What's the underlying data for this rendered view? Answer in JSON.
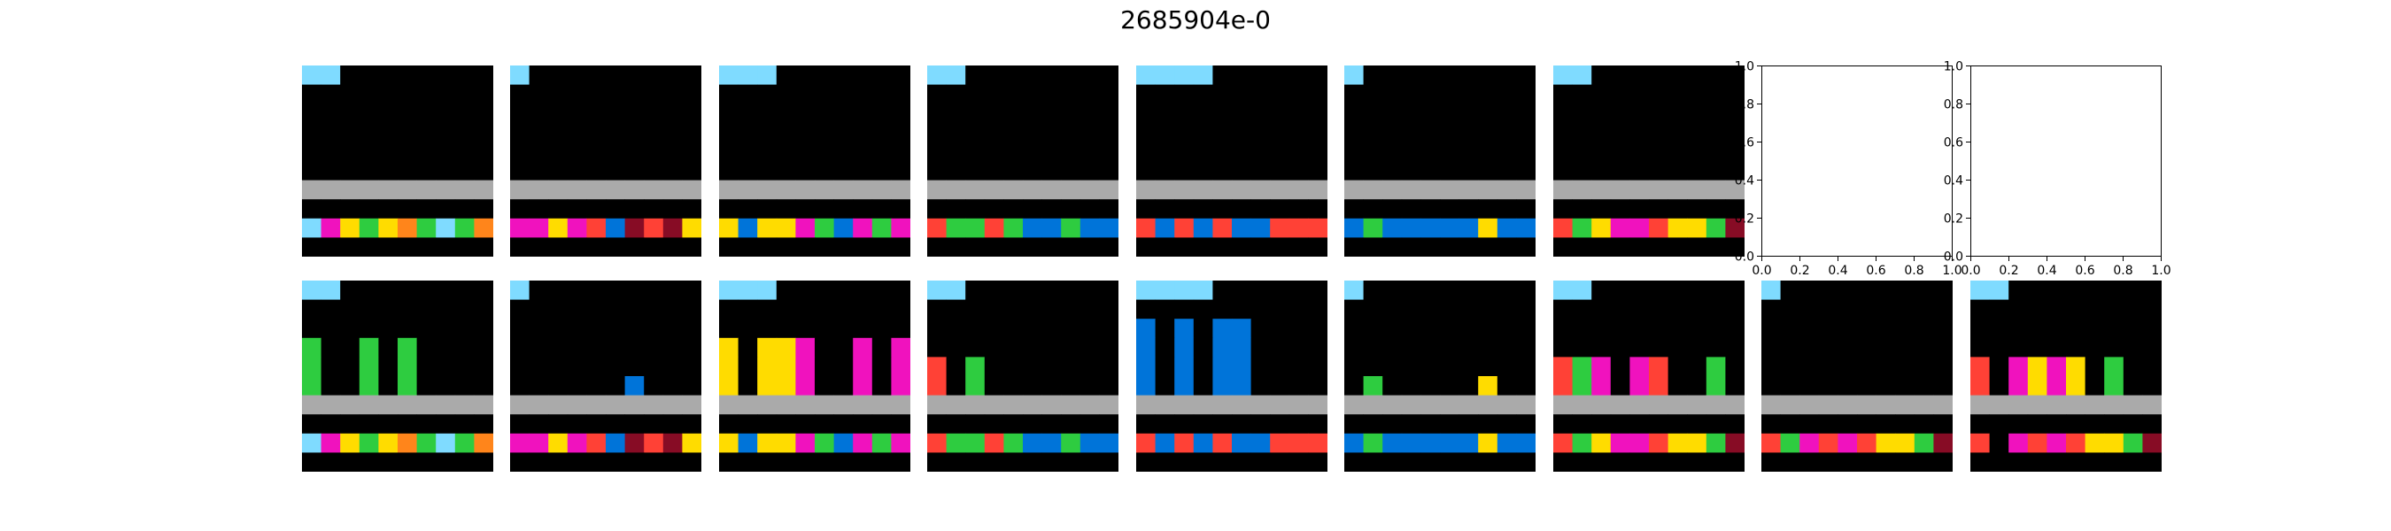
{
  "figure": {
    "title": "2685904e-0",
    "colors": {
      "0": "#000000",
      "1": "#0074D9",
      "2": "#FF4136",
      "3": "#2ECC40",
      "4": "#FFDC00",
      "5": "#AAAAAA",
      "6": "#F012BE",
      "7": "#FF851B",
      "8": "#7FDBFF",
      "9": "#870C25"
    },
    "pairs": [
      {
        "input": [
          "8800000000",
          "0000000000",
          "0000000000",
          "0000000000",
          "0000000000",
          "0000000000",
          "5555555555",
          "0000000000",
          "8643473837",
          "0000000000"
        ],
        "output": [
          "8800000000",
          "0000000000",
          "0000000000",
          "3003030000",
          "3003030000",
          "3003030000",
          "5555555555",
          "0000000000",
          "8643473837",
          "0000000000"
        ]
      },
      {
        "input": [
          "8000000000",
          "0000000000",
          "0000000000",
          "0000000000",
          "0000000000",
          "0000000000",
          "5555555555",
          "0000000000",
          "6646219294",
          "0000000000"
        ],
        "output": [
          "8000000000",
          "0000000000",
          "0000000000",
          "0000000000",
          "0000000000",
          "0000001000",
          "5555555555",
          "0000000000",
          "6646219294",
          "0000000000"
        ]
      },
      {
        "input": [
          "8880000000",
          "0000000000",
          "0000000000",
          "0000000000",
          "0000000000",
          "0000000000",
          "5555555555",
          "0000000000",
          "4144631636",
          "0000000000"
        ],
        "output": [
          "8880000000",
          "0000000000",
          "0000000000",
          "4044600606",
          "4044600606",
          "4044600606",
          "5555555555",
          "0000000000",
          "4144631636",
          "0000000000"
        ]
      },
      {
        "input": [
          "8800000000",
          "0000000000",
          "0000000000",
          "0000000000",
          "0000000000",
          "0000000000",
          "5555555555",
          "0000000000",
          "2332311311",
          "0000000000"
        ],
        "output": [
          "8800000000",
          "0000000000",
          "0000000000",
          "0000000000",
          "2030000000",
          "2030000000",
          "5555555555",
          "0000000000",
          "2332311311",
          "0000000000"
        ]
      },
      {
        "input": [
          "8888000000",
          "0000000000",
          "0000000000",
          "0000000000",
          "0000000000",
          "0000000000",
          "5555555555",
          "0000000000",
          "2121211222",
          "0000000000"
        ],
        "output": [
          "8888000000",
          "0000000000",
          "1010110000",
          "1010110000",
          "1010110000",
          "1010110000",
          "5555555555",
          "0000000000",
          "2121211222",
          "0000000000"
        ]
      },
      {
        "input": [
          "8000000000",
          "0000000000",
          "0000000000",
          "0000000000",
          "0000000000",
          "0000000000",
          "5555555555",
          "0000000000",
          "1311111411",
          "0000000000"
        ],
        "output": [
          "8000000000",
          "0000000000",
          "0000000000",
          "0000000000",
          "0000000000",
          "0300000400",
          "5555555555",
          "0000000000",
          "1311111411",
          "0000000000"
        ]
      },
      {
        "input": [
          "8800000000",
          "0000000000",
          "0000000000",
          "0000000000",
          "0000000000",
          "0000000000",
          "5555555555",
          "0000000000",
          "2346624439",
          "0000000000"
        ],
        "output": [
          "8800000000",
          "0000000000",
          "0000000000",
          "0000000000",
          "2360620030",
          "2360620030",
          "5555555555",
          "0000000000",
          "2346624439",
          "0000000000"
        ]
      }
    ],
    "test": {
      "input": [
        "8000000000",
        "0000000000",
        "0000000000",
        "0000000000",
        "0000000000",
        "0000000000",
        "5555555555",
        "0000000000",
        "2362624439",
        "0000000000"
      ],
      "output": [
        "8800000000",
        "0000000000",
        "0000000000",
        "0000000000",
        "2064640300",
        "2064640300",
        "5555555555",
        "0000000000",
        "2062624439",
        "0000000000"
      ]
    },
    "empty_axes": {
      "xticks": [
        "0.0",
        "0.2",
        "0.4",
        "0.6",
        "0.8",
        "1.0"
      ],
      "yticks": [
        "0.0",
        "0.2",
        "0.4",
        "0.6",
        "0.8",
        "1.0"
      ]
    }
  }
}
